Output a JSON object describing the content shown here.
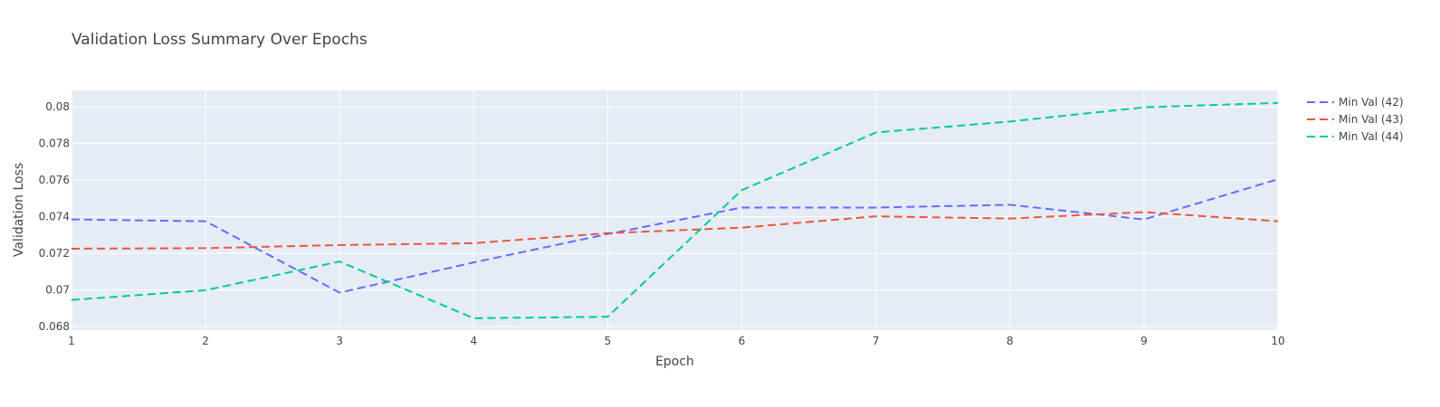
{
  "chart_data": {
    "type": "line",
    "title": "Validation Loss Summary Over Epochs",
    "xlabel": "Epoch",
    "ylabel": "Validation Loss",
    "x": [
      1,
      2,
      3,
      4,
      5,
      6,
      7,
      8,
      9,
      10
    ],
    "xlim": [
      1,
      10
    ],
    "ylim": [
      0.0678,
      0.0809
    ],
    "x_ticks": [
      1,
      2,
      3,
      4,
      5,
      6,
      7,
      8,
      9,
      10
    ],
    "y_ticks": [
      0.068,
      0.07,
      0.072,
      0.074,
      0.076,
      0.078,
      0.08
    ],
    "y_tick_labels": [
      "0.068",
      "0.07",
      "0.072",
      "0.074",
      "0.076",
      "0.078",
      "0.08"
    ],
    "grid": true,
    "legend_position": "top-right",
    "series": [
      {
        "name": "Min Val (42)",
        "color": "#636efa",
        "dash": "dashed",
        "values": [
          0.07385,
          0.07375,
          0.06985,
          0.0715,
          0.07305,
          0.0745,
          0.0745,
          0.07465,
          0.07385,
          0.07605
        ]
      },
      {
        "name": "Min Val (43)",
        "color": "#ef553b",
        "dash": "dashed",
        "values": [
          0.07225,
          0.07228,
          0.07245,
          0.07255,
          0.0731,
          0.0734,
          0.07402,
          0.0739,
          0.07425,
          0.07375
        ]
      },
      {
        "name": "Min Val (44)",
        "color": "#00cc96",
        "dash": "dashed",
        "values": [
          0.06945,
          0.06998,
          0.07155,
          0.06845,
          0.06853,
          0.07545,
          0.0786,
          0.0792,
          0.07998,
          0.08022
        ]
      }
    ]
  }
}
